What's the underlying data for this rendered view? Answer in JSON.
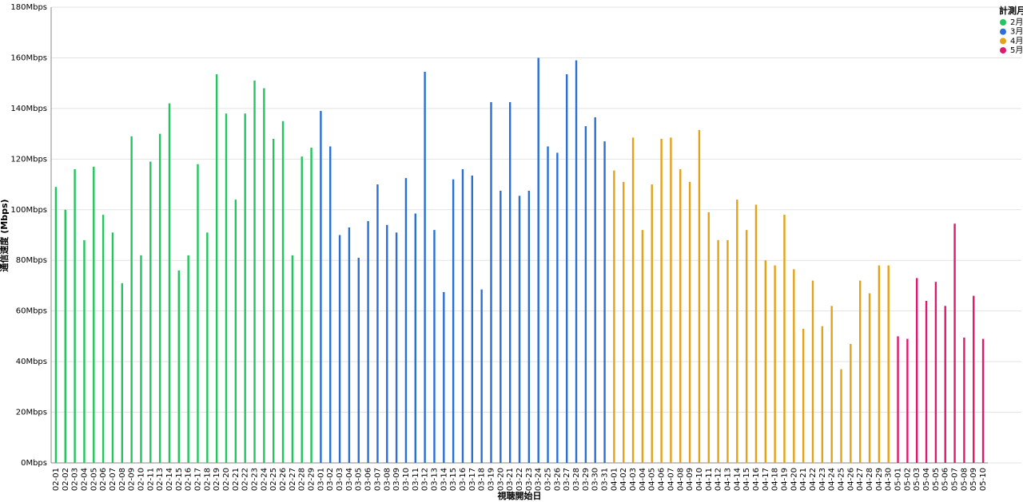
{
  "chart_data": {
    "type": "bar",
    "x_label": "視聴開始日",
    "y_label": "通信速度 (Mbps)",
    "legend_title": "計測月",
    "legend": "top-right",
    "grid": true,
    "categories": [
      "02-01",
      "02-02",
      "02-03",
      "02-04",
      "02-05",
      "02-06",
      "02-07",
      "02-08",
      "02-09",
      "02-10",
      "02-11",
      "02-13",
      "02-14",
      "02-15",
      "02-16",
      "02-17",
      "02-18",
      "02-19",
      "02-20",
      "02-21",
      "02-22",
      "02-23",
      "02-24",
      "02-25",
      "02-26",
      "02-27",
      "02-28",
      "02-29",
      "03-01",
      "03-02",
      "03-03",
      "03-04",
      "03-05",
      "03-06",
      "03-07",
      "03-08",
      "03-09",
      "03-10",
      "03-11",
      "03-12",
      "03-13",
      "03-14",
      "03-15",
      "03-16",
      "03-17",
      "03-18",
      "03-19",
      "03-20",
      "03-21",
      "03-22",
      "03-23",
      "03-24",
      "03-25",
      "03-26",
      "03-27",
      "03-28",
      "03-29",
      "03-30",
      "03-31",
      "04-01",
      "04-02",
      "04-03",
      "04-04",
      "04-05",
      "04-06",
      "04-07",
      "04-08",
      "04-09",
      "04-10",
      "04-11",
      "04-12",
      "04-13",
      "04-14",
      "04-15",
      "04-16",
      "04-17",
      "04-18",
      "04-19",
      "04-20",
      "04-21",
      "04-22",
      "04-23",
      "04-24",
      "04-25",
      "04-26",
      "04-27",
      "04-28",
      "04-29",
      "04-30",
      "05-01",
      "05-02",
      "05-03",
      "05-04",
      "05-05",
      "05-06",
      "05-07",
      "05-08",
      "05-09",
      "05-10"
    ],
    "series": [
      {
        "name": "2月",
        "color": "#22c55e",
        "values": [
          109,
          100,
          116,
          88,
          117,
          98,
          91,
          71,
          129,
          82,
          119,
          130,
          142,
          76,
          82,
          118,
          91,
          153.5,
          138,
          104,
          138,
          151,
          148,
          128,
          135,
          82,
          121,
          124.5,
          null,
          null,
          null,
          null,
          null,
          null,
          null,
          null,
          null,
          null,
          null,
          null,
          null,
          null,
          null,
          null,
          null,
          null,
          null,
          null,
          null,
          null,
          null,
          null,
          null,
          null,
          null,
          null,
          null,
          null,
          null,
          null,
          null,
          null,
          null,
          null,
          null,
          null,
          null,
          null,
          null,
          null,
          null,
          null,
          null,
          null,
          null,
          null,
          null,
          null,
          null,
          null,
          null,
          null,
          null,
          null,
          null,
          null,
          null,
          null,
          null,
          null,
          null,
          null,
          null,
          null,
          null,
          null,
          null,
          null,
          null
        ]
      },
      {
        "name": "3月",
        "color": "#2a6fd6",
        "values": [
          null,
          null,
          null,
          null,
          null,
          null,
          null,
          null,
          null,
          null,
          null,
          null,
          null,
          null,
          null,
          null,
          null,
          null,
          null,
          null,
          null,
          null,
          null,
          null,
          null,
          null,
          null,
          null,
          139,
          125,
          90,
          93,
          81,
          95.5,
          110,
          94,
          91,
          112.5,
          98.5,
          154.5,
          92,
          67.5,
          112,
          116,
          113.5,
          68.5,
          142.5,
          107.5,
          142.5,
          105.5,
          107.5,
          160,
          125,
          122.5,
          153.5,
          159,
          133,
          136.5,
          127,
          null,
          null,
          null,
          null,
          null,
          null,
          null,
          null,
          null,
          null,
          null,
          null,
          null,
          null,
          null,
          null,
          null,
          null,
          null,
          null,
          null,
          null,
          null,
          null,
          null,
          null,
          null,
          null,
          null,
          null,
          null,
          null,
          null,
          null,
          null,
          null,
          null,
          null,
          null,
          null
        ]
      },
      {
        "name": "4月",
        "color": "#e3a21a",
        "values": [
          null,
          null,
          null,
          null,
          null,
          null,
          null,
          null,
          null,
          null,
          null,
          null,
          null,
          null,
          null,
          null,
          null,
          null,
          null,
          null,
          null,
          null,
          null,
          null,
          null,
          null,
          null,
          null,
          null,
          null,
          null,
          null,
          null,
          null,
          null,
          null,
          null,
          null,
          null,
          null,
          null,
          null,
          null,
          null,
          null,
          null,
          null,
          null,
          null,
          null,
          null,
          null,
          null,
          null,
          null,
          null,
          null,
          null,
          null,
          115.5,
          111,
          128.5,
          92,
          110,
          128,
          128.5,
          116,
          111,
          131.5,
          99,
          88,
          88,
          104,
          92,
          102,
          80,
          78,
          98,
          76.5,
          53,
          72,
          54,
          62,
          37,
          47,
          72,
          67,
          78,
          78,
          null,
          null,
          null,
          null,
          null,
          null,
          null,
          null,
          null,
          null
        ]
      },
      {
        "name": "5月",
        "color": "#e0196e",
        "values": [
          null,
          null,
          null,
          null,
          null,
          null,
          null,
          null,
          null,
          null,
          null,
          null,
          null,
          null,
          null,
          null,
          null,
          null,
          null,
          null,
          null,
          null,
          null,
          null,
          null,
          null,
          null,
          null,
          null,
          null,
          null,
          null,
          null,
          null,
          null,
          null,
          null,
          null,
          null,
          null,
          null,
          null,
          null,
          null,
          null,
          null,
          null,
          null,
          null,
          null,
          null,
          null,
          null,
          null,
          null,
          null,
          null,
          null,
          null,
          null,
          null,
          null,
          null,
          null,
          null,
          null,
          null,
          null,
          null,
          null,
          null,
          null,
          null,
          null,
          null,
          null,
          null,
          null,
          null,
          null,
          null,
          null,
          null,
          null,
          null,
          null,
          null,
          null,
          null,
          50,
          49,
          73,
          64,
          71.5,
          62,
          94.5,
          49.5,
          66,
          49
        ]
      }
    ],
    "ylim": [
      0,
      180
    ],
    "yticks": [
      {
        "value": 0,
        "label": "0Mbps"
      },
      {
        "value": 20,
        "label": "20Mbps"
      },
      {
        "value": 40,
        "label": "40Mbps"
      },
      {
        "value": 60,
        "label": "60Mbps"
      },
      {
        "value": 80,
        "label": "80Mbps"
      },
      {
        "value": 100,
        "label": "100Mbps"
      },
      {
        "value": 120,
        "label": "120Mbps"
      },
      {
        "value": 140,
        "label": "140Mbps"
      },
      {
        "value": 160,
        "label": "160Mbps"
      },
      {
        "value": 180,
        "label": "180Mbps"
      }
    ]
  }
}
